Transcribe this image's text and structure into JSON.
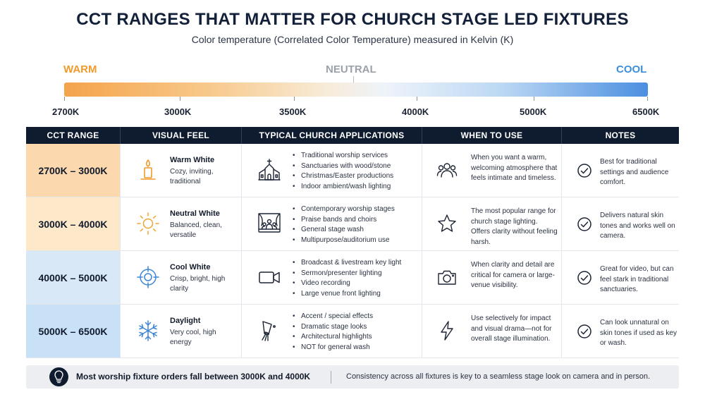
{
  "title": "CCT RANGES THAT MATTER FOR CHURCH STAGE LED FIXTURES",
  "subtitle": "Color temperature (Correlated Color Temperature) measured in Kelvin (K)",
  "scale": {
    "warm": "WARM",
    "neutral": "NEUTRAL",
    "cool": "COOL",
    "ticks": [
      "2700K",
      "3000K",
      "3500K",
      "4000K",
      "5000K",
      "6500K"
    ],
    "colors": {
      "warm": "#f19a2b",
      "neutral": "#9aa1ab",
      "cool": "#3d8fdb"
    }
  },
  "table": {
    "headers": [
      "CCT RANGE",
      "VISUAL FEEL",
      "TYPICAL CHURCH APPLICATIONS",
      "WHEN TO USE",
      "NOTES"
    ],
    "rows": [
      {
        "range": "2700K – 3000K",
        "bg": "#fbd8ad",
        "feel_icon": "candle-icon",
        "feel_title": "Warm White",
        "feel_desc": "Cozy, inviting, traditional",
        "app_icon": "church-icon",
        "apps": [
          "Traditional worship services",
          "Sanctuaries with wood/stone",
          "Christmas/Easter productions",
          "Indoor ambient/wash lighting"
        ],
        "when_icon": "people-icon",
        "when": "When you want a warm, welcoming atmosphere that feels intimate and timeless.",
        "note": "Best for traditional settings and audience comfort."
      },
      {
        "range": "3000K – 4000K",
        "bg": "#fde9c9",
        "feel_icon": "sun-icon",
        "feel_title": "Neutral White",
        "feel_desc": "Balanced, clean, versatile",
        "app_icon": "stage-icon",
        "apps": [
          "Contemporary worship stages",
          "Praise bands and choirs",
          "General stage wash",
          "Multipurpose/auditorium use"
        ],
        "when_icon": "star-icon",
        "when": "The most popular range for church stage lighting. Offers clarity without feeling harsh.",
        "note": "Delivers natural skin tones and works well on camera."
      },
      {
        "range": "4000K – 5000K",
        "bg": "#d8e8f7",
        "feel_icon": "target-icon",
        "feel_title": "Cool White",
        "feel_desc": "Crisp, bright, high clarity",
        "app_icon": "video-camera-icon",
        "apps": [
          "Broadcast & livestream key light",
          "Sermon/presenter lighting",
          "Video recording",
          "Large venue front lighting"
        ],
        "when_icon": "camera-icon",
        "when": "When clarity and detail are critical for camera or large-venue visibility.",
        "note": "Great for video, but can feel stark in traditional sanctuaries."
      },
      {
        "range": "5000K – 6500K",
        "bg": "#c9e1f6",
        "feel_icon": "snowflake-icon",
        "feel_title": "Daylight",
        "feel_desc": "Very cool, high energy",
        "app_icon": "spotlight-icon",
        "apps": [
          "Accent / special effects",
          "Dramatic stage looks",
          "Architectural highlights",
          "NOT for general wash"
        ],
        "when_icon": "lightning-icon",
        "when": "Use selectively for impact and visual drama—not for overall stage illumination.",
        "note": "Can look unnatural on skin tones if used as key or wash."
      }
    ]
  },
  "footer": {
    "icon": "lightbulb-icon",
    "main": "Most worship fixture orders fall between 3000K and 4000K",
    "sub": "Consistency across all fixtures is key to a seamless stage look on camera and in person."
  }
}
